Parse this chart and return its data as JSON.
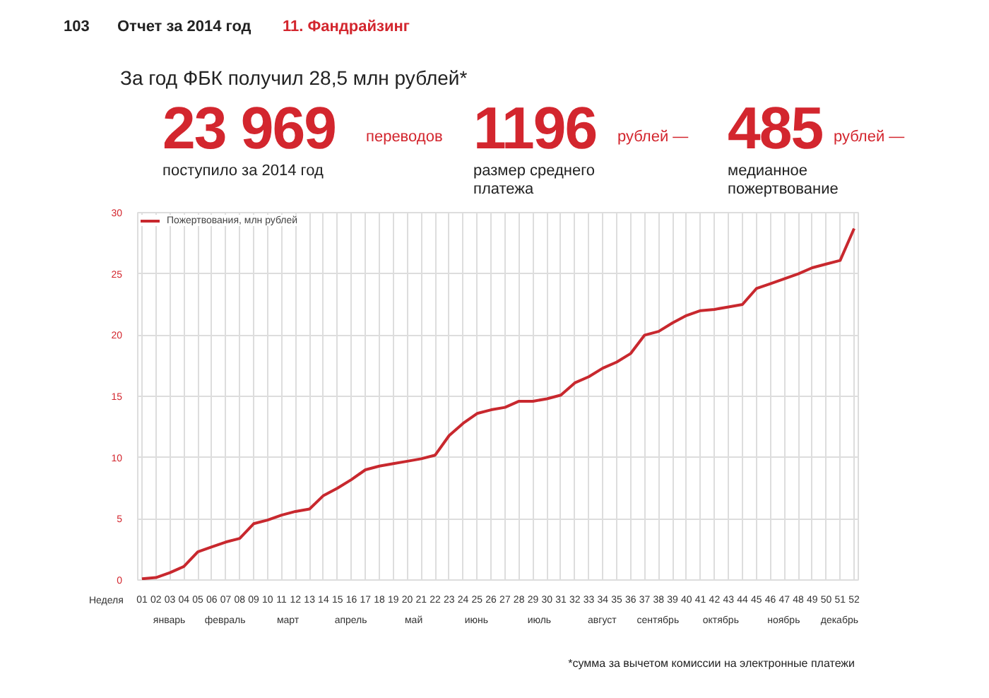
{
  "chart_data": {
    "type": "line",
    "title": "За год ФБК получил 28,5 млн рублей*",
    "xlabel": "Неделя",
    "x": [
      1,
      2,
      3,
      4,
      5,
      6,
      7,
      8,
      9,
      10,
      11,
      12,
      13,
      14,
      15,
      16,
      17,
      18,
      19,
      20,
      21,
      22,
      23,
      24,
      25,
      26,
      27,
      28,
      29,
      30,
      31,
      32,
      33,
      34,
      35,
      36,
      37,
      38,
      39,
      40,
      41,
      42,
      43,
      44,
      45,
      46,
      47,
      48,
      49,
      50,
      51,
      52
    ],
    "series": [
      {
        "name": "Пожертвования, млн рублей",
        "color": "#c8282e",
        "values": [
          0.1,
          0.2,
          0.6,
          1.1,
          2.3,
          2.7,
          3.1,
          3.4,
          4.6,
          4.9,
          5.3,
          5.6,
          5.8,
          6.9,
          7.5,
          8.2,
          9.0,
          9.3,
          9.5,
          9.7,
          9.9,
          10.2,
          11.8,
          12.8,
          13.6,
          13.9,
          14.1,
          14.6,
          14.6,
          14.8,
          15.1,
          16.1,
          16.6,
          17.3,
          17.8,
          18.5,
          20.0,
          20.3,
          21.0,
          21.6,
          22.0,
          22.1,
          22.3,
          22.5,
          23.8,
          24.2,
          24.6,
          25.0,
          25.5,
          25.8,
          26.1,
          28.7
        ]
      }
    ],
    "xlim": [
      0.7,
      52.3
    ],
    "xticks": [
      {
        "value": 1,
        "label": "01"
      },
      {
        "value": 2,
        "label": "02"
      },
      {
        "value": 3,
        "label": "03"
      },
      {
        "value": 4,
        "label": "04"
      },
      {
        "value": 5,
        "label": "05"
      },
      {
        "value": 6,
        "label": "06"
      },
      {
        "value": 7,
        "label": "07"
      },
      {
        "value": 8,
        "label": "08"
      },
      {
        "value": 9,
        "label": "09"
      },
      10,
      11,
      12,
      13,
      14,
      15,
      16,
      17,
      18,
      19,
      20,
      21,
      22,
      23,
      24,
      25,
      26,
      27,
      28,
      29,
      30,
      31,
      32,
      33,
      34,
      35,
      36,
      37,
      38,
      39,
      40,
      41,
      42,
      43,
      44,
      45,
      46,
      47,
      48,
      49,
      50,
      51,
      52
    ],
    "ylim": [
      0,
      30
    ],
    "yticks": [
      0,
      5,
      10,
      15,
      20,
      25,
      30
    ],
    "grid": true,
    "legend": "top left",
    "line_style": "solid",
    "annotations": [
      "103",
      "Отчет за 2014 год",
      "11. Фандрайзинг",
      "23 969",
      "переводов",
      "поступило за 2014 год",
      "1196",
      "рублей —",
      "размер среднего платежа",
      "485",
      "рублей —",
      "медианное пожертвование",
      "*сумма за вычетом комиссии на электронные платежи",
      "январь",
      "февраль",
      "март",
      "апрель",
      "май",
      "июнь",
      "июль",
      "август",
      "сентябрь",
      "октябрь",
      "ноябрь",
      "декабрь"
    ]
  }
}
